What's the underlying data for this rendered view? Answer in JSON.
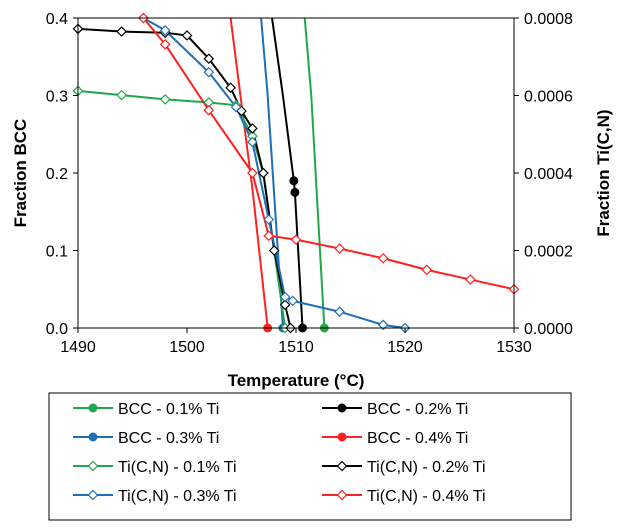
{
  "chart_data": {
    "type": "line",
    "title": "",
    "xlabel": "Temperature (°C)",
    "ylabel": "Fraction BCC",
    "y2label": "Fraction Ti(C,N)",
    "xlim": [
      1490,
      1530
    ],
    "ylim": [
      0,
      0.4
    ],
    "y2lim": [
      0,
      0.0008
    ],
    "xticks": [
      "1490",
      "1500",
      "1510",
      "1520",
      "1530"
    ],
    "yticks": [
      "0.0",
      "0.1",
      "0.2",
      "0.3",
      "0.4"
    ],
    "y2ticks": [
      "0.0000",
      "0.0002",
      "0.0004",
      "0.0006",
      "0.0008"
    ],
    "grid": false,
    "legend_position": "bottom",
    "series": [
      {
        "name": "BCC - 0.1% Ti",
        "axis": "left",
        "color": "#1fa84a",
        "marker": "filled-circle",
        "points": [
          [
            1510.8,
            0.4
          ],
          [
            1511.4,
            0.3
          ],
          [
            1512.0,
            0.15
          ],
          [
            1512.6,
            0.0
          ]
        ],
        "marker_points": [
          [
            1512.6,
            0.0
          ]
        ]
      },
      {
        "name": "BCC - 0.2% Ti",
        "axis": "left",
        "color": "#000000",
        "marker": "filled-circle",
        "points": [
          [
            1507.8,
            0.4
          ],
          [
            1508.8,
            0.3
          ],
          [
            1509.8,
            0.19
          ],
          [
            1509.9,
            0.175
          ],
          [
            1510.6,
            0.0
          ]
        ],
        "marker_points": [
          [
            1509.8,
            0.19
          ],
          [
            1509.9,
            0.175
          ],
          [
            1510.6,
            0.0
          ]
        ]
      },
      {
        "name": "BCC - 0.3% Ti",
        "axis": "left",
        "color": "#1f6fb5",
        "marker": "filled-circle",
        "points": [
          [
            1506.8,
            0.4
          ],
          [
            1507.4,
            0.3
          ],
          [
            1508.1,
            0.15
          ],
          [
            1508.8,
            0.0
          ]
        ],
        "marker_points": [
          [
            1508.8,
            0.0
          ]
        ]
      },
      {
        "name": "BCC - 0.4% Ti",
        "axis": "left",
        "color": "#ff2020",
        "marker": "filled-circle",
        "points": [
          [
            1504.0,
            0.4
          ],
          [
            1504.9,
            0.3
          ],
          [
            1506.0,
            0.18
          ],
          [
            1507.4,
            0.0
          ]
        ],
        "marker_points": [
          [
            1507.4,
            0.0
          ]
        ]
      },
      {
        "name": "Ti(C,N) - 0.1% Ti",
        "axis": "right",
        "color": "#1fa84a",
        "marker": "open-diamond",
        "points": [
          [
            1490,
            0.000612
          ],
          [
            1494,
            0.000601
          ],
          [
            1498,
            0.00059
          ],
          [
            1502,
            0.000582
          ],
          [
            1504.5,
            0.000575
          ],
          [
            1506,
            0.000495
          ],
          [
            1507,
            0.0004
          ],
          [
            1508,
            0.0002
          ],
          [
            1509,
            0.0
          ]
        ]
      },
      {
        "name": "Ti(C,N) - 0.2% Ti",
        "axis": "right",
        "color": "#000000",
        "marker": "open-diamond",
        "points": [
          [
            1490,
            0.000772
          ],
          [
            1494,
            0.000765
          ],
          [
            1498,
            0.000762
          ],
          [
            1500,
            0.000755
          ],
          [
            1502,
            0.000695
          ],
          [
            1504,
            0.00062
          ],
          [
            1505,
            0.00056
          ],
          [
            1506,
            0.000515
          ],
          [
            1507,
            0.0004
          ],
          [
            1508,
            0.0002
          ],
          [
            1509,
            6e-05
          ],
          [
            1509.5,
            0.0
          ]
        ]
      },
      {
        "name": "Ti(C,N) - 0.3% Ti",
        "axis": "right",
        "color": "#1f6fb5",
        "marker": "open-diamond",
        "points": [
          [
            1496,
            0.0008
          ],
          [
            1498,
            0.000768
          ],
          [
            1502,
            0.00066
          ],
          [
            1504.5,
            0.00057
          ],
          [
            1506,
            0.00048
          ],
          [
            1507.5,
            0.00028
          ],
          [
            1509,
            8e-05
          ],
          [
            1509.7,
            7e-05
          ],
          [
            1514,
            4.2e-05
          ],
          [
            1518,
            8e-06
          ],
          [
            1520,
            0.0
          ]
        ]
      },
      {
        "name": "Ti(C,N) - 0.4% Ti",
        "axis": "right",
        "color": "#ff2020",
        "marker": "open-diamond",
        "points": [
          [
            1496,
            0.0008
          ],
          [
            1498,
            0.000732
          ],
          [
            1502,
            0.000562
          ],
          [
            1506,
            0.0004
          ],
          [
            1507.5,
            0.000238
          ],
          [
            1510,
            0.000228
          ],
          [
            1514,
            0.000205
          ],
          [
            1518,
            0.00018
          ],
          [
            1522,
            0.00015
          ],
          [
            1526,
            0.000125
          ],
          [
            1530,
            0.0001
          ]
        ]
      }
    ]
  }
}
